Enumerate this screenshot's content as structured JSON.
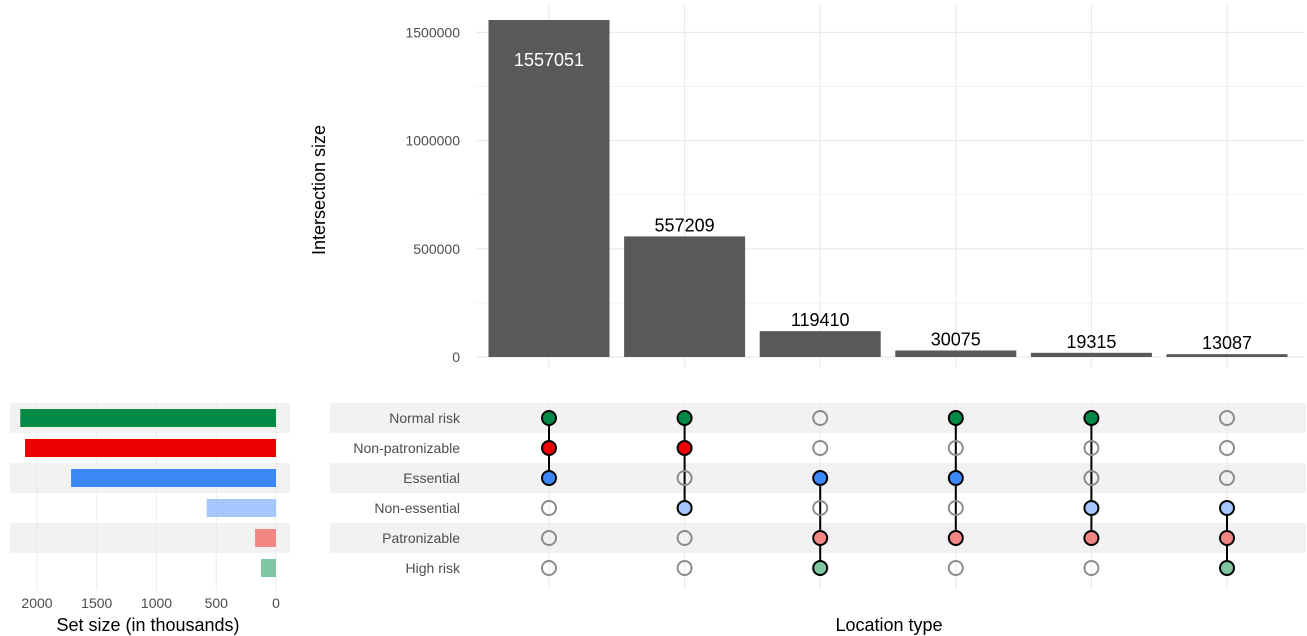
{
  "chart_data": {
    "type": "upset",
    "intersections": {
      "type": "bar",
      "ylabel": "Intersection size",
      "xlabel": "Location type",
      "ylim": [
        0,
        1620000
      ],
      "yticks": [
        0,
        500000,
        1000000,
        1500000
      ],
      "ytick_labels": [
        "0",
        "500000",
        "1000000",
        "1500000"
      ],
      "values": [
        1557051,
        557209,
        119410,
        30075,
        19315,
        13087
      ],
      "value_labels": [
        "1557051",
        "557209",
        "119410",
        "30075",
        "19315",
        "13087"
      ],
      "bar_color": "#595959",
      "grid": true
    },
    "sets": {
      "type": "bar",
      "orientation": "horizontal-reversed",
      "xlabel": "Set size (in thousands)",
      "xlim": [
        0,
        2200
      ],
      "xticks": [
        2000,
        1500,
        1000,
        500,
        0
      ],
      "xtick_labels": [
        "2000",
        "1500",
        "1000",
        "500",
        "0"
      ],
      "names": [
        "Normal risk",
        "Non-patronizable",
        "Essential",
        "Non-essential",
        "Patronizable",
        "High risk"
      ],
      "values": [
        2140,
        2100,
        1715,
        580,
        175,
        125
      ],
      "colors": [
        "#008a45",
        "#ee0000",
        "#3d88f8",
        "#a4c8fd",
        "#f28683",
        "#7ec5a1"
      ]
    },
    "matrix": [
      [
        1,
        1,
        0,
        1,
        1,
        0
      ],
      [
        1,
        1,
        0,
        0,
        0,
        0
      ],
      [
        1,
        0,
        1,
        1,
        0,
        0
      ],
      [
        0,
        1,
        0,
        0,
        1,
        1
      ],
      [
        0,
        0,
        1,
        1,
        1,
        1
      ],
      [
        0,
        0,
        1,
        0,
        0,
        1
      ]
    ]
  }
}
